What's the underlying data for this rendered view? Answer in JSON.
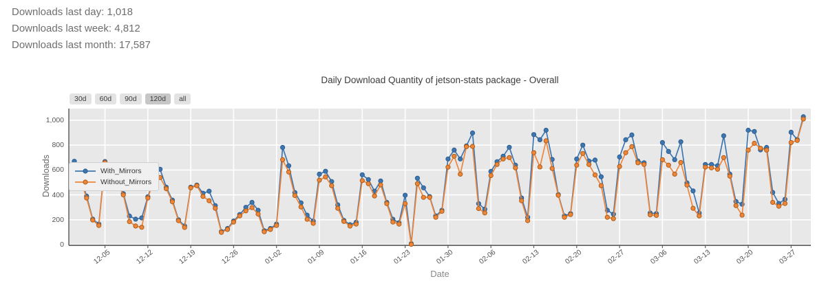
{
  "stats": {
    "last_day": "Downloads last day: 1,018",
    "last_week": "Downloads last week: 4,812",
    "last_month": "Downloads last month: 17,587"
  },
  "chart": {
    "title": "Daily Download Quantity of jetson-stats package - Overall"
  },
  "range_buttons": [
    {
      "label": "30d",
      "selected": false
    },
    {
      "label": "60d",
      "selected": false
    },
    {
      "label": "90d",
      "selected": false
    },
    {
      "label": "120d",
      "selected": true
    },
    {
      "label": "all",
      "selected": false
    }
  ],
  "colors": {
    "plot_bg": "#e8e8e8",
    "grid": "#ffffff",
    "spine": "#5f5f5f",
    "button_bg": "#e3e3e3",
    "button_selected_bg": "#c7c7c7",
    "tick_text": "#555555"
  },
  "chart_data": {
    "type": "line",
    "title": "Daily Download Quantity of jetson-stats package - Overall",
    "xlabel": "Date",
    "ylabel": "Downloads",
    "ylim": [
      0,
      1094
    ],
    "grid": true,
    "legend_position": "upper left",
    "yticks": {
      "values": [
        0,
        200,
        400,
        600,
        800,
        1000
      ],
      "labels": [
        "0",
        "200",
        "400",
        "600",
        "800",
        "1,000"
      ]
    },
    "xtick_labels": [
      "12-05",
      "12-12",
      "12-19",
      "12-26",
      "01-02",
      "01-09",
      "01-16",
      "01-23",
      "01-30",
      "02-06",
      "02-13",
      "02-20",
      "02-27",
      "03-06",
      "03-13",
      "03-20",
      "03-27"
    ],
    "xtick_indices": [
      5,
      12,
      19,
      26,
      33,
      40,
      47,
      54,
      61,
      68,
      75,
      82,
      89,
      96,
      103,
      110,
      117
    ],
    "x": [
      "11-30",
      "12-01",
      "12-02",
      "12-03",
      "12-04",
      "12-05",
      "12-06",
      "12-07",
      "12-08",
      "12-09",
      "12-10",
      "12-11",
      "12-12",
      "12-13",
      "12-14",
      "12-15",
      "12-16",
      "12-17",
      "12-18",
      "12-19",
      "12-20",
      "12-21",
      "12-22",
      "12-23",
      "12-24",
      "12-25",
      "12-26",
      "12-27",
      "12-28",
      "12-29",
      "12-30",
      "12-31",
      "01-01",
      "01-02",
      "01-03",
      "01-04",
      "01-05",
      "01-06",
      "01-07",
      "01-08",
      "01-09",
      "01-10",
      "01-11",
      "01-12",
      "01-13",
      "01-14",
      "01-15",
      "01-16",
      "01-17",
      "01-18",
      "01-19",
      "01-20",
      "01-21",
      "01-22",
      "01-23",
      "01-24",
      "01-25",
      "01-26",
      "01-27",
      "01-28",
      "01-29",
      "01-30",
      "01-31",
      "02-01",
      "02-02",
      "02-03",
      "02-04",
      "02-05",
      "02-06",
      "02-07",
      "02-08",
      "02-09",
      "02-10",
      "02-11",
      "02-12",
      "02-13",
      "02-14",
      "02-15",
      "02-16",
      "02-17",
      "02-18",
      "02-19",
      "02-20",
      "02-21",
      "02-22",
      "02-23",
      "02-24",
      "02-25",
      "02-26",
      "02-27",
      "02-28",
      "03-01",
      "03-02",
      "03-03",
      "03-04",
      "03-05",
      "03-06",
      "03-07",
      "03-08",
      "03-09",
      "03-10",
      "03-11",
      "03-12",
      "03-13",
      "03-14",
      "03-15",
      "03-16",
      "03-17",
      "03-18",
      "03-19",
      "03-20",
      "03-21",
      "03-22",
      "03-23",
      "03-24",
      "03-25",
      "03-26",
      "03-27",
      "03-28",
      "03-29"
    ],
    "series": [
      {
        "name": "With_Mirrors",
        "color": "#3d76b0",
        "marker_edge": "#2c5d8f",
        "values": [
          670,
          545,
          390,
          205,
          165,
          668,
          630,
          520,
          410,
          230,
          205,
          215,
          385,
          535,
          606,
          462,
          358,
          200,
          150,
          462,
          479,
          413,
          430,
          314,
          105,
          130,
          190,
          242,
          300,
          340,
          276,
          112,
          130,
          165,
          782,
          634,
          419,
          336,
          237,
          190,
          567,
          590,
          507,
          320,
          195,
          160,
          180,
          562,
          523,
          430,
          512,
          340,
          204,
          176,
          397,
          8,
          534,
          457,
          386,
          231,
          276,
          689,
          760,
          689,
          794,
          898,
          330,
          285,
          589,
          667,
          711,
          783,
          639,
          375,
          220,
          885,
          843,
          920,
          685,
          402,
          231,
          250,
          689,
          800,
          672,
          680,
          546,
          276,
          245,
          705,
          843,
          882,
          672,
          658,
          254,
          250,
          821,
          749,
          683,
          827,
          496,
          432,
          254,
          645,
          645,
          634,
          875,
          567,
          347,
          325,
          920,
          910,
          762,
          782,
          420,
          331,
          364,
          904,
          845,
          1028
        ]
      },
      {
        "name": "Without_Mirrors",
        "color": "#ee8539",
        "marker_edge": "#aa5c16",
        "values": [
          640,
          520,
          375,
          198,
          154,
          660,
          608,
          498,
          400,
          185,
          150,
          140,
          375,
          524,
          540,
          450,
          345,
          193,
          138,
          457,
          474,
          388,
          353,
          292,
          99,
          122,
          182,
          231,
          272,
          298,
          246,
          104,
          122,
          154,
          683,
          584,
          395,
          303,
          204,
          171,
          518,
          545,
          474,
          292,
          187,
          149,
          165,
          515,
          490,
          391,
          480,
          330,
          182,
          165,
          330,
          2,
          490,
          380,
          380,
          220,
          268,
          623,
          711,
          567,
          788,
          790,
          290,
          255,
          556,
          645,
          689,
          700,
          617,
          353,
          193,
          740,
          625,
          835,
          612,
          397,
          220,
          242,
          639,
          733,
          645,
          560,
          474,
          220,
          209,
          628,
          739,
          788,
          658,
          645,
          240,
          235,
          683,
          639,
          567,
          661,
          479,
          292,
          231,
          623,
          617,
          606,
          700,
          551,
          314,
          237,
          760,
          815,
          775,
          760,
          340,
          309,
          331,
          821,
          838,
          1010
        ]
      }
    ]
  }
}
